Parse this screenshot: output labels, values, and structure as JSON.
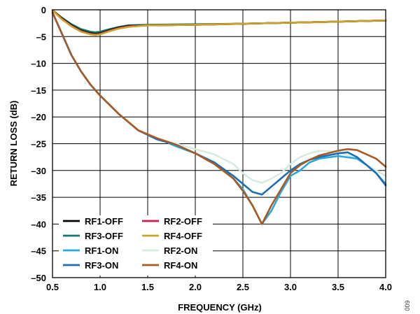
{
  "chart_data": {
    "type": "line",
    "xlabel": "FREQUENCY (GHz)",
    "ylabel": "RETURN LOSS (dB)",
    "xlim": [
      0.5,
      4.0
    ],
    "ylim": [
      -50,
      0
    ],
    "x_ticks": [
      0.5,
      1.0,
      1.5,
      2.0,
      2.5,
      3.0,
      3.5,
      4.0
    ],
    "x_tick_labels": [
      "0.5",
      "1.0",
      "1.5",
      "2.0",
      "2.5",
      "3.0",
      "3.5",
      "4.0"
    ],
    "y_ticks": [
      0,
      -5,
      -10,
      -15,
      -20,
      -25,
      -30,
      -35,
      -40,
      -45,
      -50
    ],
    "y_tick_labels": [
      "0",
      "–5",
      "–10",
      "–15",
      "–20",
      "–25",
      "–30",
      "–35",
      "–40",
      "–45",
      "–50"
    ],
    "grid": true,
    "legend_position": "bottom-left",
    "figure_id": "009",
    "series": [
      {
        "name": "RF1-OFF",
        "color": "#000000",
        "x": [
          0.5,
          0.6,
          0.7,
          0.8,
          0.9,
          0.95,
          1.0,
          1.1,
          1.2,
          1.3,
          1.5,
          2.0,
          2.5,
          3.0,
          3.5,
          4.0
        ],
        "y": [
          -0.1,
          -1.6,
          -2.9,
          -3.9,
          -4.4,
          -4.5,
          -4.4,
          -3.8,
          -3.3,
          -3.0,
          -2.9,
          -2.8,
          -2.6,
          -2.4,
          -2.2,
          -2.0
        ]
      },
      {
        "name": "RF2-OFF",
        "color": "#c41f4a",
        "x": [
          0.5,
          0.6,
          0.7,
          0.8,
          0.9,
          0.95,
          1.0,
          1.1,
          1.2,
          1.3,
          1.5,
          2.0,
          2.5,
          3.0,
          3.5,
          4.0
        ],
        "y": [
          -0.1,
          -1.7,
          -3.0,
          -4.0,
          -4.5,
          -4.6,
          -4.5,
          -3.9,
          -3.4,
          -3.1,
          -2.9,
          -2.8,
          -2.6,
          -2.4,
          -2.2,
          -2.0
        ]
      },
      {
        "name": "RF3-OFF",
        "color": "#0f7a6a",
        "x": [
          0.5,
          0.6,
          0.7,
          0.8,
          0.9,
          0.95,
          1.0,
          1.1,
          1.2,
          1.3,
          1.5,
          2.0,
          2.5,
          3.0,
          3.5,
          4.0
        ],
        "y": [
          -0.1,
          -1.5,
          -2.7,
          -3.6,
          -4.1,
          -4.2,
          -4.1,
          -3.6,
          -3.2,
          -2.9,
          -2.8,
          -2.7,
          -2.6,
          -2.4,
          -2.2,
          -2.0
        ]
      },
      {
        "name": "RF4-OFF",
        "color": "#c9a227",
        "x": [
          0.5,
          0.6,
          0.7,
          0.8,
          0.9,
          0.95,
          1.0,
          1.1,
          1.2,
          1.3,
          1.5,
          2.0,
          2.5,
          3.0,
          3.5,
          4.0
        ],
        "y": [
          -0.1,
          -1.8,
          -3.1,
          -4.1,
          -4.6,
          -4.7,
          -4.6,
          -4.0,
          -3.5,
          -3.2,
          -2.9,
          -2.8,
          -2.6,
          -2.4,
          -2.2,
          -2.0
        ]
      },
      {
        "name": "RF1-ON",
        "color": "#29a8e0",
        "x": [
          0.5,
          0.6,
          0.7,
          0.8,
          0.9,
          1.0,
          1.2,
          1.4,
          1.6,
          1.8,
          2.0,
          2.2,
          2.4,
          2.5,
          2.6,
          2.7,
          2.8,
          2.9,
          3.0,
          3.1,
          3.2,
          3.3,
          3.5,
          3.7,
          3.8,
          3.9,
          4.0
        ],
        "y": [
          -0.5,
          -4.5,
          -8.5,
          -11.5,
          -14.0,
          -16.0,
          -19.5,
          -22.5,
          -24.0,
          -25.5,
          -26.8,
          -28.5,
          -31.5,
          -33.5,
          -36.5,
          -40.0,
          -37.5,
          -34.0,
          -31.0,
          -30.0,
          -28.5,
          -27.8,
          -27.3,
          -27.8,
          -29.0,
          -30.5,
          -32.5
        ]
      },
      {
        "name": "RF2-ON",
        "color": "#d8ebdf",
        "x": [
          0.5,
          0.6,
          0.7,
          0.8,
          0.9,
          1.0,
          1.2,
          1.4,
          1.6,
          1.8,
          2.0,
          2.2,
          2.4,
          2.5,
          2.6,
          2.7,
          2.8,
          2.9,
          3.0,
          3.1,
          3.2,
          3.3,
          3.5,
          3.7,
          3.8,
          3.9,
          4.0
        ],
        "y": [
          -0.5,
          -4.5,
          -8.5,
          -11.5,
          -14.0,
          -16.0,
          -19.5,
          -22.5,
          -24.0,
          -25.0,
          -26.0,
          -27.0,
          -28.8,
          -30.5,
          -31.8,
          -32.3,
          -31.5,
          -30.5,
          -28.8,
          -27.5,
          -26.8,
          -26.3,
          -26.5,
          -27.8,
          -29.0,
          -30.0,
          -31.0
        ]
      },
      {
        "name": "RF3-ON",
        "color": "#1f6db5",
        "x": [
          0.5,
          0.6,
          0.7,
          0.8,
          0.9,
          1.0,
          1.2,
          1.4,
          1.6,
          1.8,
          2.0,
          2.2,
          2.4,
          2.5,
          2.6,
          2.7,
          2.8,
          2.9,
          3.0,
          3.1,
          3.2,
          3.3,
          3.5,
          3.6,
          3.7,
          3.8,
          3.9,
          4.0
        ],
        "y": [
          -0.5,
          -4.5,
          -8.5,
          -11.5,
          -14.0,
          -16.0,
          -19.5,
          -22.5,
          -24.2,
          -25.2,
          -26.8,
          -28.5,
          -31.0,
          -32.5,
          -34.0,
          -34.5,
          -33.0,
          -31.5,
          -30.0,
          -28.8,
          -28.0,
          -27.5,
          -26.8,
          -26.6,
          -27.5,
          -29.0,
          -30.5,
          -32.8
        ]
      },
      {
        "name": "RF4-ON",
        "color": "#a85a24",
        "x": [
          0.5,
          0.6,
          0.7,
          0.8,
          0.9,
          1.0,
          1.2,
          1.4,
          1.6,
          1.8,
          2.0,
          2.2,
          2.4,
          2.5,
          2.6,
          2.7,
          2.8,
          2.9,
          3.0,
          3.1,
          3.2,
          3.3,
          3.5,
          3.6,
          3.7,
          3.8,
          3.9,
          4.0
        ],
        "y": [
          -0.5,
          -4.5,
          -8.5,
          -11.5,
          -14.0,
          -16.0,
          -19.5,
          -22.5,
          -24.0,
          -25.2,
          -26.8,
          -28.8,
          -31.5,
          -33.8,
          -36.5,
          -40.0,
          -36.5,
          -33.5,
          -30.5,
          -29.0,
          -28.0,
          -27.2,
          -26.3,
          -26.0,
          -26.2,
          -27.0,
          -27.8,
          -29.3
        ]
      }
    ]
  }
}
